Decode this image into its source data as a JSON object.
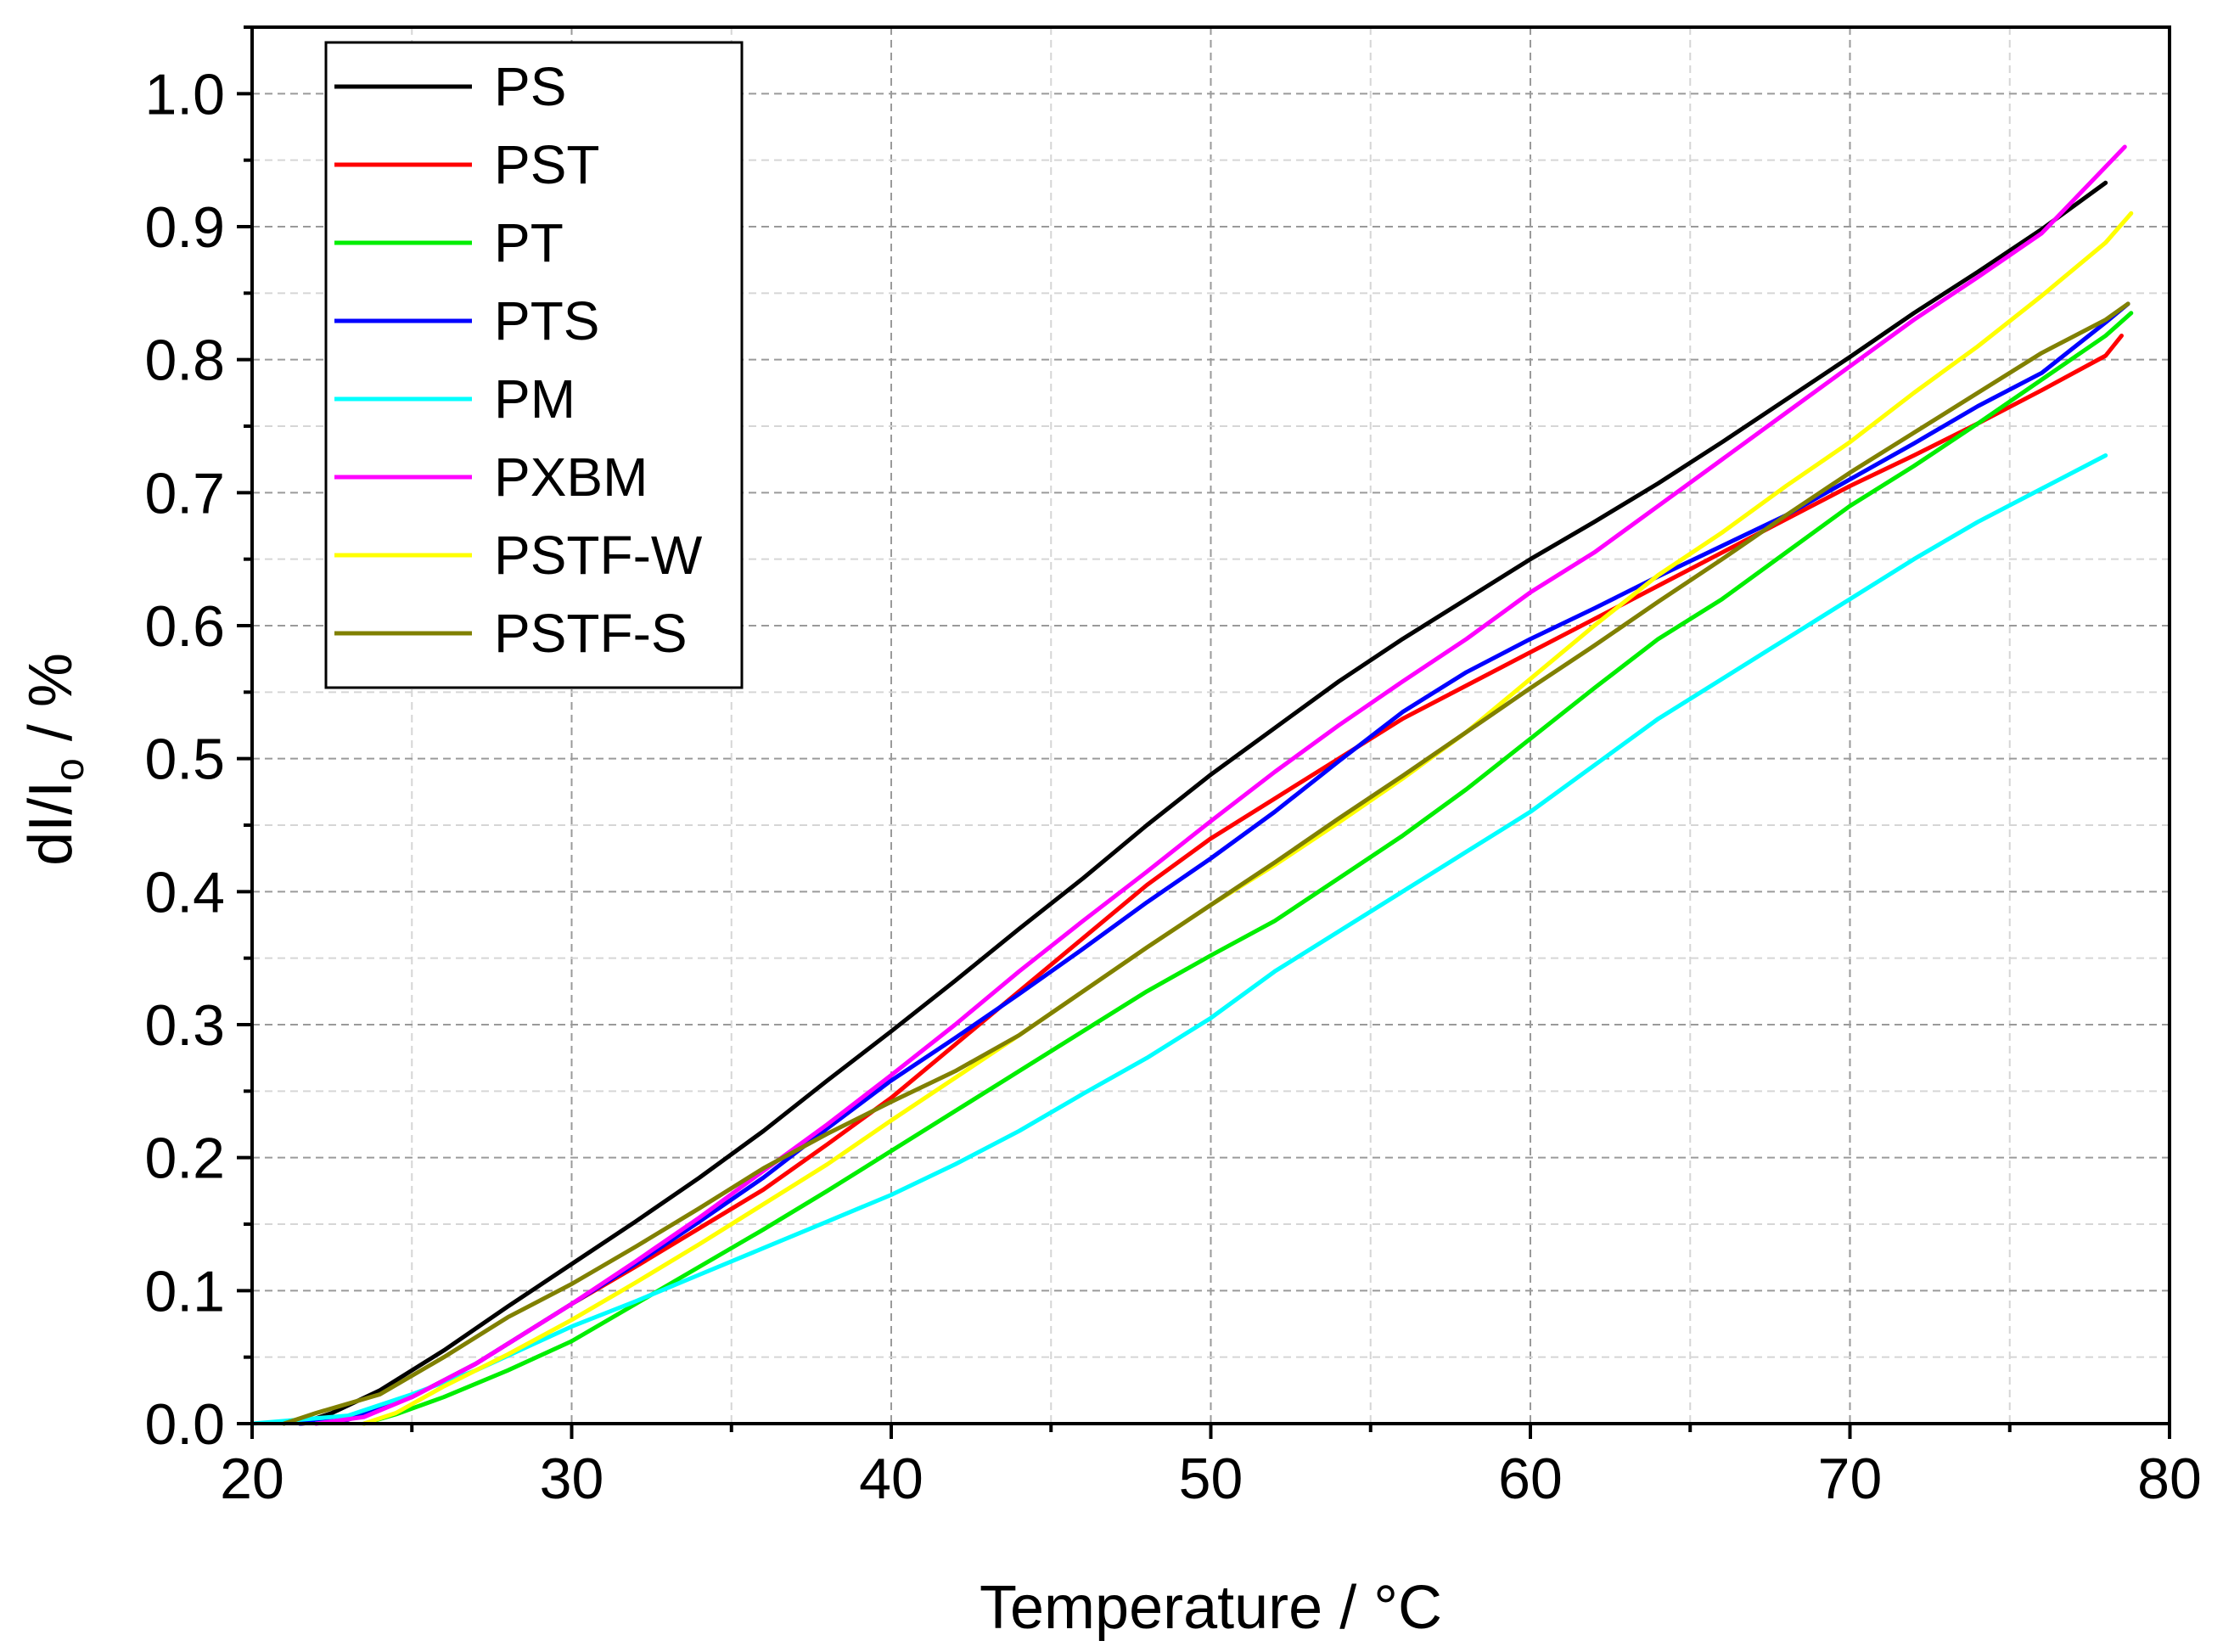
{
  "chart_data": {
    "type": "line",
    "title": "",
    "xlabel": "Temperature / °C",
    "ylabel_parts": {
      "main": "dI/I",
      "sub": "o",
      "tail": " / %"
    },
    "xlim": [
      20,
      80
    ],
    "ylim": [
      0.0,
      1.05
    ],
    "x_ticks": [
      20,
      30,
      40,
      50,
      60,
      70,
      80
    ],
    "x_tick_labels": [
      "20",
      "30",
      "40",
      "50",
      "60",
      "70",
      "80"
    ],
    "y_ticks": [
      0.0,
      0.1,
      0.2,
      0.3,
      0.4,
      0.5,
      0.6,
      0.7,
      0.8,
      0.9,
      1.0
    ],
    "y_tick_labels": [
      "0.0",
      "0.1",
      "0.2",
      "0.3",
      "0.4",
      "0.5",
      "0.6",
      "0.7",
      "0.8",
      "0.9",
      "1.0"
    ],
    "x_minor_step": 5,
    "y_minor_step": 0.05,
    "grid": true,
    "legend_position": "top-left",
    "series": [
      {
        "name": "PS",
        "color": "#000000",
        "points": [
          [
            21.5,
            0.0
          ],
          [
            22.5,
            0.008
          ],
          [
            24,
            0.025
          ],
          [
            26,
            0.055
          ],
          [
            28,
            0.088
          ],
          [
            30,
            0.12
          ],
          [
            32,
            0.152
          ],
          [
            34,
            0.185
          ],
          [
            36,
            0.22
          ],
          [
            38,
            0.258
          ],
          [
            40,
            0.295
          ],
          [
            42,
            0.333
          ],
          [
            44,
            0.372
          ],
          [
            46,
            0.41
          ],
          [
            48,
            0.45
          ],
          [
            50,
            0.488
          ],
          [
            52,
            0.523
          ],
          [
            54,
            0.558
          ],
          [
            56,
            0.59
          ],
          [
            58,
            0.62
          ],
          [
            60,
            0.65
          ],
          [
            62,
            0.678
          ],
          [
            64,
            0.707
          ],
          [
            66,
            0.738
          ],
          [
            68,
            0.77
          ],
          [
            70,
            0.802
          ],
          [
            72,
            0.835
          ],
          [
            74,
            0.866
          ],
          [
            76,
            0.898
          ],
          [
            78,
            0.933
          ]
        ]
      },
      {
        "name": "PST",
        "color": "#ff0000",
        "points": [
          [
            21.5,
            0.0
          ],
          [
            23,
            0.003
          ],
          [
            25,
            0.02
          ],
          [
            27,
            0.045
          ],
          [
            30,
            0.09
          ],
          [
            32,
            0.118
          ],
          [
            34,
            0.147
          ],
          [
            36,
            0.176
          ],
          [
            38,
            0.21
          ],
          [
            40,
            0.245
          ],
          [
            42,
            0.285
          ],
          [
            44,
            0.325
          ],
          [
            46,
            0.365
          ],
          [
            48,
            0.405
          ],
          [
            50,
            0.44
          ],
          [
            52,
            0.47
          ],
          [
            54,
            0.5
          ],
          [
            56,
            0.53
          ],
          [
            58,
            0.555
          ],
          [
            60,
            0.58
          ],
          [
            62,
            0.605
          ],
          [
            64,
            0.63
          ],
          [
            66,
            0.655
          ],
          [
            68,
            0.68
          ],
          [
            70,
            0.705
          ],
          [
            72,
            0.728
          ],
          [
            74,
            0.752
          ],
          [
            76,
            0.777
          ],
          [
            78,
            0.803
          ],
          [
            78.5,
            0.818
          ]
        ]
      },
      {
        "name": "PT",
        "color": "#00ee00",
        "points": [
          [
            23.5,
            0.0
          ],
          [
            24.5,
            0.007
          ],
          [
            26,
            0.02
          ],
          [
            28,
            0.04
          ],
          [
            30,
            0.062
          ],
          [
            32,
            0.09
          ],
          [
            34,
            0.118
          ],
          [
            36,
            0.146
          ],
          [
            38,
            0.175
          ],
          [
            40,
            0.205
          ],
          [
            42,
            0.235
          ],
          [
            44,
            0.265
          ],
          [
            46,
            0.295
          ],
          [
            48,
            0.325
          ],
          [
            50,
            0.352
          ],
          [
            52,
            0.378
          ],
          [
            54,
            0.41
          ],
          [
            56,
            0.442
          ],
          [
            58,
            0.477
          ],
          [
            60,
            0.515
          ],
          [
            62,
            0.553
          ],
          [
            64,
            0.59
          ],
          [
            66,
            0.62
          ],
          [
            68,
            0.655
          ],
          [
            70,
            0.69
          ],
          [
            72,
            0.72
          ],
          [
            74,
            0.752
          ],
          [
            76,
            0.785
          ],
          [
            78,
            0.818
          ],
          [
            78.8,
            0.835
          ]
        ]
      },
      {
        "name": "PTS",
        "color": "#0000ff",
        "points": [
          [
            21.5,
            0.0
          ],
          [
            23,
            0.003
          ],
          [
            25,
            0.02
          ],
          [
            27,
            0.045
          ],
          [
            30,
            0.09
          ],
          [
            32,
            0.12
          ],
          [
            34,
            0.152
          ],
          [
            36,
            0.185
          ],
          [
            38,
            0.222
          ],
          [
            40,
            0.258
          ],
          [
            42,
            0.29
          ],
          [
            44,
            0.323
          ],
          [
            46,
            0.357
          ],
          [
            48,
            0.392
          ],
          [
            50,
            0.425
          ],
          [
            52,
            0.46
          ],
          [
            54,
            0.498
          ],
          [
            56,
            0.535
          ],
          [
            58,
            0.565
          ],
          [
            60,
            0.59
          ],
          [
            62,
            0.613
          ],
          [
            64,
            0.637
          ],
          [
            66,
            0.66
          ],
          [
            68,
            0.683
          ],
          [
            70,
            0.71
          ],
          [
            72,
            0.737
          ],
          [
            74,
            0.765
          ],
          [
            76,
            0.79
          ],
          [
            78,
            0.828
          ],
          [
            78.7,
            0.842
          ]
        ]
      },
      {
        "name": "PM",
        "color": "#00ffff",
        "points": [
          [
            20,
            0.0
          ],
          [
            21,
            0.002
          ],
          [
            23,
            0.006
          ],
          [
            25,
            0.022
          ],
          [
            27,
            0.04
          ],
          [
            30,
            0.073
          ],
          [
            32,
            0.092
          ],
          [
            34,
            0.112
          ],
          [
            36,
            0.132
          ],
          [
            38,
            0.152
          ],
          [
            40,
            0.172
          ],
          [
            42,
            0.195
          ],
          [
            44,
            0.22
          ],
          [
            46,
            0.248
          ],
          [
            48,
            0.275
          ],
          [
            50,
            0.305
          ],
          [
            52,
            0.34
          ],
          [
            54,
            0.37
          ],
          [
            56,
            0.4
          ],
          [
            58,
            0.43
          ],
          [
            60,
            0.46
          ],
          [
            62,
            0.495
          ],
          [
            64,
            0.53
          ],
          [
            66,
            0.56
          ],
          [
            68,
            0.59
          ],
          [
            70,
            0.62
          ],
          [
            72,
            0.65
          ],
          [
            74,
            0.678
          ],
          [
            76,
            0.703
          ],
          [
            78,
            0.728
          ]
        ]
      },
      {
        "name": "PXBM",
        "color": "#ff00ff",
        "points": [
          [
            22,
            0.0
          ],
          [
            23.5,
            0.005
          ],
          [
            25,
            0.02
          ],
          [
            27,
            0.045
          ],
          [
            30,
            0.09
          ],
          [
            32,
            0.122
          ],
          [
            34,
            0.155
          ],
          [
            36,
            0.19
          ],
          [
            38,
            0.225
          ],
          [
            40,
            0.262
          ],
          [
            42,
            0.3
          ],
          [
            44,
            0.34
          ],
          [
            46,
            0.378
          ],
          [
            48,
            0.415
          ],
          [
            50,
            0.453
          ],
          [
            52,
            0.49
          ],
          [
            54,
            0.525
          ],
          [
            56,
            0.558
          ],
          [
            58,
            0.59
          ],
          [
            60,
            0.625
          ],
          [
            62,
            0.655
          ],
          [
            64,
            0.69
          ],
          [
            66,
            0.725
          ],
          [
            68,
            0.76
          ],
          [
            70,
            0.795
          ],
          [
            72,
            0.83
          ],
          [
            74,
            0.862
          ],
          [
            76,
            0.895
          ],
          [
            78,
            0.945
          ],
          [
            78.6,
            0.96
          ]
        ]
      },
      {
        "name": "PSTF-W",
        "color": "#ffff00",
        "points": [
          [
            23.5,
            0.0
          ],
          [
            24.5,
            0.008
          ],
          [
            26,
            0.028
          ],
          [
            28,
            0.052
          ],
          [
            30,
            0.078
          ],
          [
            32,
            0.106
          ],
          [
            34,
            0.135
          ],
          [
            36,
            0.165
          ],
          [
            38,
            0.195
          ],
          [
            40,
            0.228
          ],
          [
            42,
            0.26
          ],
          [
            44,
            0.292
          ],
          [
            46,
            0.325
          ],
          [
            48,
            0.358
          ],
          [
            50,
            0.39
          ],
          [
            52,
            0.42
          ],
          [
            54,
            0.452
          ],
          [
            56,
            0.485
          ],
          [
            58,
            0.52
          ],
          [
            60,
            0.56
          ],
          [
            62,
            0.6
          ],
          [
            64,
            0.638
          ],
          [
            66,
            0.67
          ],
          [
            68,
            0.705
          ],
          [
            70,
            0.738
          ],
          [
            72,
            0.775
          ],
          [
            74,
            0.81
          ],
          [
            76,
            0.848
          ],
          [
            78,
            0.888
          ],
          [
            78.8,
            0.91
          ]
        ]
      },
      {
        "name": "PSTF-S",
        "color": "#808000",
        "points": [
          [
            21,
            0.0
          ],
          [
            22,
            0.008
          ],
          [
            24,
            0.022
          ],
          [
            26,
            0.05
          ],
          [
            28,
            0.08
          ],
          [
            30,
            0.105
          ],
          [
            32,
            0.133
          ],
          [
            34,
            0.162
          ],
          [
            36,
            0.192
          ],
          [
            38,
            0.218
          ],
          [
            40,
            0.242
          ],
          [
            42,
            0.265
          ],
          [
            44,
            0.292
          ],
          [
            46,
            0.325
          ],
          [
            48,
            0.358
          ],
          [
            50,
            0.39
          ],
          [
            52,
            0.422
          ],
          [
            54,
            0.455
          ],
          [
            56,
            0.487
          ],
          [
            58,
            0.52
          ],
          [
            60,
            0.553
          ],
          [
            62,
            0.585
          ],
          [
            64,
            0.618
          ],
          [
            66,
            0.65
          ],
          [
            68,
            0.683
          ],
          [
            70,
            0.715
          ],
          [
            72,
            0.745
          ],
          [
            74,
            0.775
          ],
          [
            76,
            0.805
          ],
          [
            78,
            0.83
          ],
          [
            78.7,
            0.842
          ]
        ]
      }
    ]
  }
}
